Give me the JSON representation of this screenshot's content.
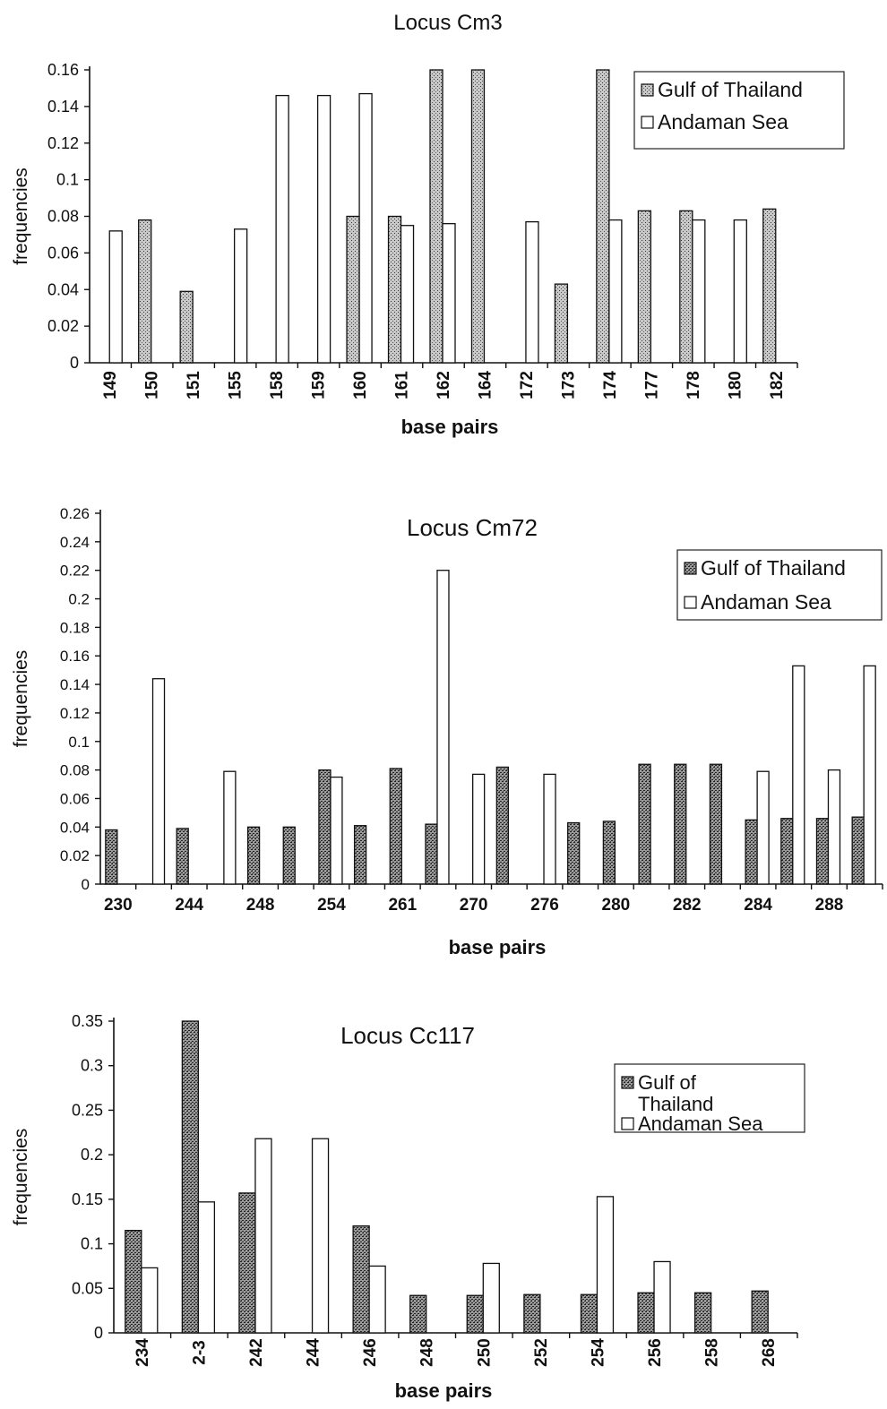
{
  "chart_data": [
    {
      "type": "bar",
      "title": "Locus Cm3",
      "xlabel": "base pairs",
      "ylabel": "frequencies",
      "ylim": [
        0,
        0.16
      ],
      "yticks": [
        "0",
        "0.02",
        "0.04",
        "0.06",
        "0.08",
        "0.1",
        "0.12",
        "0.14",
        "0.16"
      ],
      "legend_position": "top-right",
      "categories": [
        "149",
        "150",
        "151",
        "155",
        "158",
        "159",
        "160",
        "161",
        "162",
        "164",
        "172",
        "173",
        "174",
        "177",
        "178",
        "180",
        "182"
      ],
      "series": [
        {
          "name": "Gulf of Thailand",
          "color": "#9a9a9a",
          "values": [
            0,
            0.078,
            0.039,
            0,
            0,
            0,
            0.08,
            0.08,
            0.16,
            0.16,
            0,
            0.043,
            0.16,
            0.083,
            0.083,
            0,
            0.084
          ]
        },
        {
          "name": "Andaman Sea",
          "color": "#ffffff",
          "values": [
            0.072,
            0,
            0,
            0.073,
            0.146,
            0.146,
            0.147,
            0.075,
            0.076,
            0,
            0.077,
            0,
            0.078,
            0,
            0.078,
            0.078,
            0
          ]
        }
      ]
    },
    {
      "type": "bar",
      "title": "Locus Cm72",
      "xlabel": "base pairs",
      "ylabel": "frequencies",
      "ylim": [
        0,
        0.26
      ],
      "yticks": [
        "0",
        "0.02",
        "0.04",
        "0.06",
        "0.08",
        "0.1",
        "0.12",
        "0.14",
        "0.16",
        "0.18",
        "0.2",
        "0.22",
        "0.24",
        "0.26"
      ],
      "legend_position": "top-right",
      "categories": [
        "230",
        "",
        "244",
        "",
        "248",
        "",
        "254",
        "",
        "261",
        "",
        "270",
        "",
        "276",
        "",
        "280",
        "",
        "282",
        "",
        "284",
        "",
        "288",
        ""
      ],
      "series": [
        {
          "name": "Gulf of Thailand",
          "color": "#7a7a7a",
          "values": [
            0.038,
            0,
            0.039,
            0,
            0.04,
            0.04,
            0.08,
            0.041,
            0.081,
            0.042,
            0,
            0.082,
            0,
            0.043,
            0.044,
            0.084,
            0.084,
            0.084,
            0.045,
            0.046,
            0.046,
            0.047
          ]
        },
        {
          "name": "Andaman Sea",
          "color": "#ffffff",
          "values": [
            0,
            0.144,
            0,
            0.079,
            0,
            0,
            0.075,
            0,
            0,
            0.22,
            0.077,
            0,
            0.077,
            0,
            0,
            0,
            0,
            0,
            0.079,
            0.153,
            0.08,
            0.153
          ]
        }
      ]
    },
    {
      "type": "bar",
      "title": "Locus Cc117",
      "xlabel": "base pairs",
      "ylabel": "frequencies",
      "ylim": [
        0,
        0.35
      ],
      "yticks": [
        "0",
        "0.05",
        "0.1",
        "0.15",
        "0.2",
        "0.25",
        "0.3",
        "0.35"
      ],
      "legend_position": "top-right",
      "legend_lines": [
        [
          "Gulf of",
          "Thailand"
        ],
        [
          "Andaman Sea"
        ]
      ],
      "categories": [
        "234",
        "2-3",
        "242",
        "244",
        "246",
        "248",
        "250",
        "252",
        "254",
        "256",
        "258",
        "268"
      ],
      "series": [
        {
          "name": "Gulf of Thailand",
          "color": "#6e6e6e",
          "values": [
            0.115,
            0.35,
            0.157,
            0,
            0.12,
            0.042,
            0.042,
            0.043,
            0.043,
            0.045,
            0.045,
            0.047
          ]
        },
        {
          "name": "Andaman Sea",
          "color": "#ffffff",
          "values": [
            0.073,
            0.147,
            0.218,
            0.218,
            0.075,
            0,
            0.078,
            0,
            0.153,
            0.08,
            0,
            0
          ]
        }
      ]
    }
  ]
}
